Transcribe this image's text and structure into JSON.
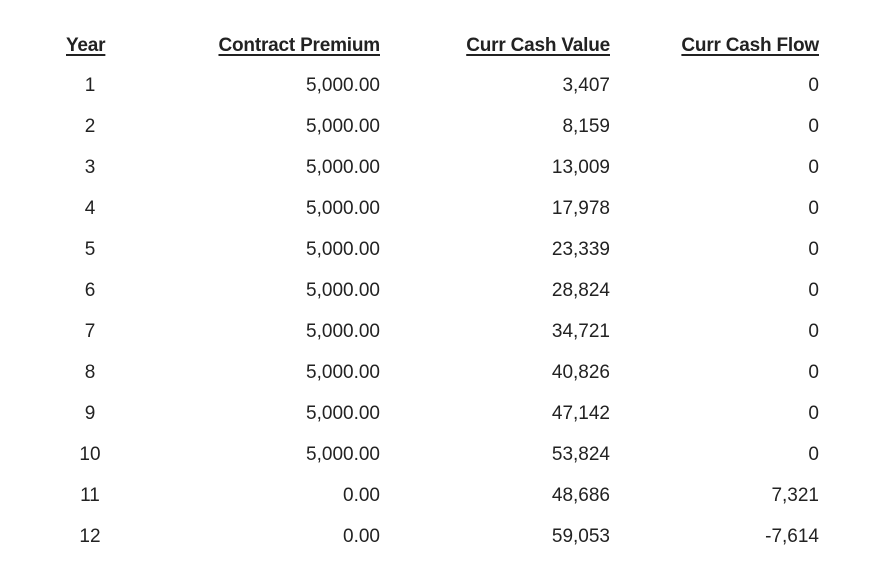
{
  "table": {
    "headers": {
      "year": "Year",
      "contract_premium": "Contract Premium",
      "curr_cash_value": "Curr Cash Value",
      "curr_cash_flow": "Curr Cash Flow"
    },
    "rows": [
      {
        "year": "1",
        "premium": "5,000.00",
        "cash_value": "3,407",
        "cash_flow": "0"
      },
      {
        "year": "2",
        "premium": "5,000.00",
        "cash_value": "8,159",
        "cash_flow": "0"
      },
      {
        "year": "3",
        "premium": "5,000.00",
        "cash_value": "13,009",
        "cash_flow": "0"
      },
      {
        "year": "4",
        "premium": "5,000.00",
        "cash_value": "17,978",
        "cash_flow": "0"
      },
      {
        "year": "5",
        "premium": "5,000.00",
        "cash_value": "23,339",
        "cash_flow": "0"
      },
      {
        "year": "6",
        "premium": "5,000.00",
        "cash_value": "28,824",
        "cash_flow": "0"
      },
      {
        "year": "7",
        "premium": "5,000.00",
        "cash_value": "34,721",
        "cash_flow": "0"
      },
      {
        "year": "8",
        "premium": "5,000.00",
        "cash_value": "40,826",
        "cash_flow": "0"
      },
      {
        "year": "9",
        "premium": "5,000.00",
        "cash_value": "47,142",
        "cash_flow": "0"
      },
      {
        "year": "10",
        "premium": "5,000.00",
        "cash_value": "53,824",
        "cash_flow": "0"
      },
      {
        "year": "11",
        "premium": "0.00",
        "cash_value": "48,686",
        "cash_flow": "7,321"
      },
      {
        "year": "12",
        "premium": "0.00",
        "cash_value": "59,053",
        "cash_flow": "-7,614"
      }
    ]
  }
}
